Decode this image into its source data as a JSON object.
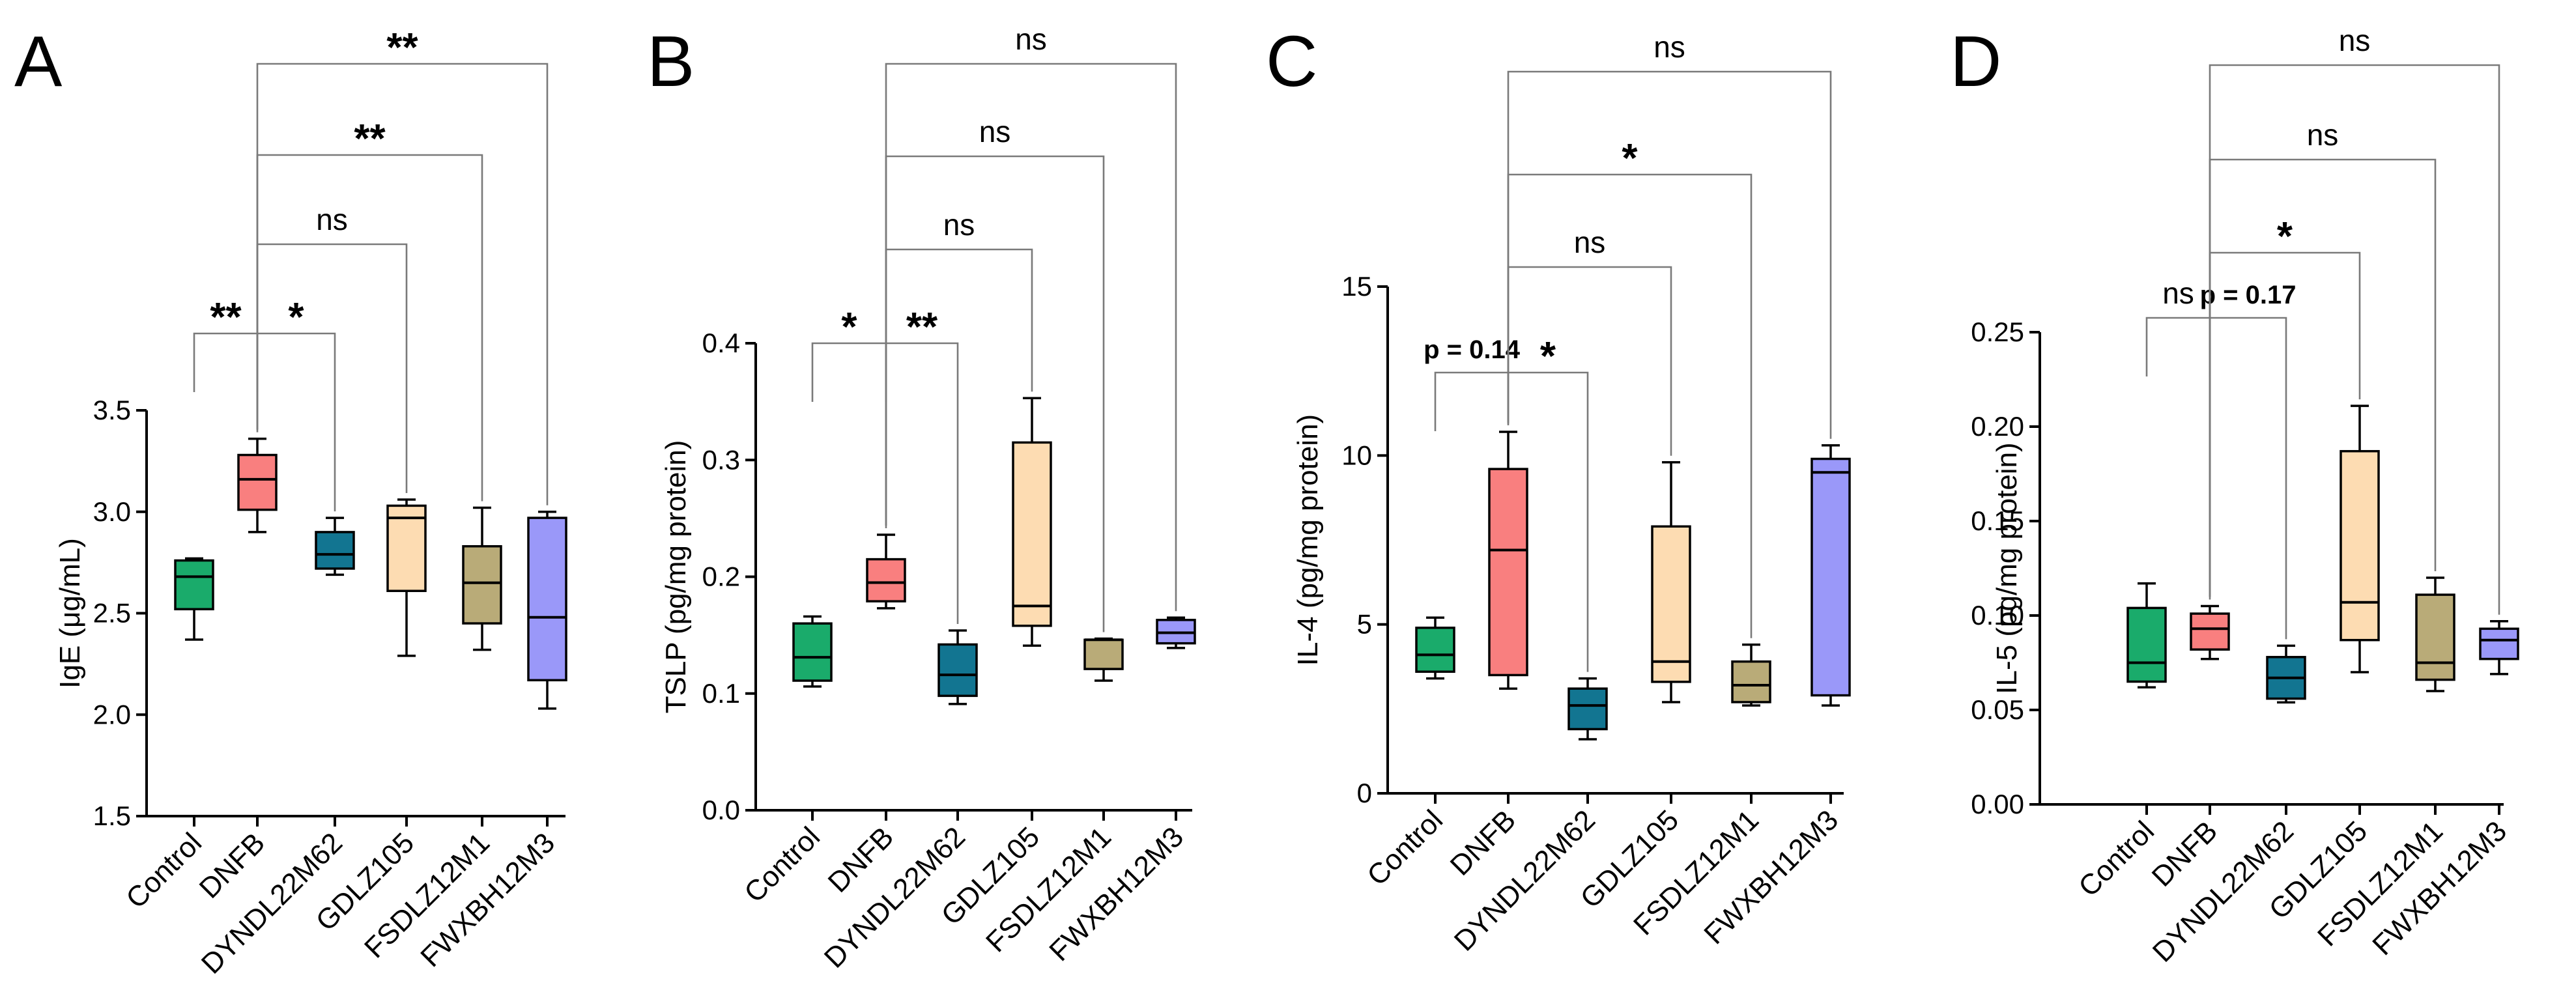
{
  "colors": [
    "#1aab6b",
    "#f97f7f",
    "#127591",
    "#fddcb2",
    "#b9ab78",
    "#9a98f9"
  ],
  "chart_data": [
    {
      "type": "box",
      "panel_label": "A",
      "ylabel": "IgE (μg/mL)",
      "ylim": [
        1.5,
        3.5
      ],
      "yticks": [
        "1.5",
        "2.0",
        "2.5",
        "3.0",
        "3.5"
      ],
      "ytick_values": [
        1.5,
        2.0,
        2.5,
        3.0,
        3.5
      ],
      "categories": [
        "Control",
        "DNFB",
        "DYNDL22M62",
        "GDLZ105",
        "FSDLZ12M1",
        "FWXBH12M3"
      ],
      "boxes": [
        {
          "min": 2.37,
          "q1": 2.52,
          "median": 2.68,
          "q3": 2.76,
          "max": 2.77
        },
        {
          "min": 2.9,
          "q1": 3.01,
          "median": 3.16,
          "q3": 3.28,
          "max": 3.36
        },
        {
          "min": 2.69,
          "q1": 2.72,
          "median": 2.79,
          "q3": 2.9,
          "max": 2.97
        },
        {
          "min": 2.29,
          "q1": 2.61,
          "median": 2.97,
          "q3": 3.03,
          "max": 3.06
        },
        {
          "min": 2.32,
          "q1": 2.45,
          "median": 2.65,
          "q3": 2.83,
          "max": 3.02
        },
        {
          "min": 2.03,
          "q1": 2.17,
          "median": 2.48,
          "q3": 2.97,
          "max": 3.0
        }
      ],
      "comparisons": [
        {
          "from": 0,
          "to": 1,
          "label": "**",
          "kind": "star",
          "level": 0
        },
        {
          "from": 1,
          "to": 2,
          "label": "*",
          "kind": "star",
          "level": 0
        },
        {
          "from": 1,
          "to": 3,
          "label": "ns",
          "kind": "ns",
          "level": 1
        },
        {
          "from": 1,
          "to": 4,
          "label": "**",
          "kind": "star",
          "level": 2
        },
        {
          "from": 1,
          "to": 5,
          "label": "**",
          "kind": "star",
          "level": 3
        }
      ]
    },
    {
      "type": "box",
      "panel_label": "B",
      "ylabel": "TSLP (pg/mg protein)",
      "ylim": [
        0.0,
        0.4
      ],
      "yticks": [
        "0.0",
        "0.1",
        "0.2",
        "0.3",
        "0.4"
      ],
      "ytick_values": [
        0.0,
        0.1,
        0.2,
        0.3,
        0.4
      ],
      "categories": [
        "Control",
        "DNFB",
        "DYNDL22M62",
        "GDLZ105",
        "FSDLZ12M1",
        "FWXBH12M3"
      ],
      "boxes": [
        {
          "min": 0.106,
          "q1": 0.111,
          "median": 0.131,
          "q3": 0.16,
          "max": 0.166
        },
        {
          "min": 0.173,
          "q1": 0.179,
          "median": 0.195,
          "q3": 0.215,
          "max": 0.236
        },
        {
          "min": 0.091,
          "q1": 0.098,
          "median": 0.116,
          "q3": 0.142,
          "max": 0.154
        },
        {
          "min": 0.141,
          "q1": 0.158,
          "median": 0.175,
          "q3": 0.315,
          "max": 0.353
        },
        {
          "min": 0.111,
          "q1": 0.121,
          "median": 0.146,
          "q3": 0.146,
          "max": 0.147
        },
        {
          "min": 0.139,
          "q1": 0.143,
          "median": 0.152,
          "q3": 0.163,
          "max": 0.165
        }
      ],
      "comparisons": [
        {
          "from": 0,
          "to": 1,
          "label": "*",
          "kind": "star",
          "level": 0
        },
        {
          "from": 1,
          "to": 2,
          "label": "**",
          "kind": "star",
          "level": 0
        },
        {
          "from": 1,
          "to": 3,
          "label": "ns",
          "kind": "ns",
          "level": 1
        },
        {
          "from": 1,
          "to": 4,
          "label": "ns",
          "kind": "ns",
          "level": 2
        },
        {
          "from": 1,
          "to": 5,
          "label": "ns",
          "kind": "ns",
          "level": 3
        }
      ]
    },
    {
      "type": "box",
      "panel_label": "C",
      "ylabel": "IL-4 (pg/mg protein)",
      "ylim": [
        0,
        15
      ],
      "yticks": [
        "0",
        "5",
        "10",
        "15"
      ],
      "ytick_values": [
        0,
        5,
        10,
        15
      ],
      "categories": [
        "Control",
        "DNFB",
        "DYNDL22M62",
        "GDLZ105",
        "FSDLZ12M1",
        "FWXBH12M3"
      ],
      "boxes": [
        {
          "min": 3.4,
          "q1": 3.6,
          "median": 4.1,
          "q3": 4.9,
          "max": 5.2
        },
        {
          "min": 3.1,
          "q1": 3.5,
          "median": 7.2,
          "q3": 9.6,
          "max": 10.7
        },
        {
          "min": 1.6,
          "q1": 1.9,
          "median": 2.6,
          "q3": 3.1,
          "max": 3.4
        },
        {
          "min": 2.7,
          "q1": 3.3,
          "median": 3.9,
          "q3": 7.9,
          "max": 9.8
        },
        {
          "min": 2.6,
          "q1": 2.7,
          "median": 3.2,
          "q3": 3.9,
          "max": 4.4
        },
        {
          "min": 2.6,
          "q1": 2.9,
          "median": 9.5,
          "q3": 9.9,
          "max": 10.3
        }
      ],
      "comparisons": [
        {
          "from": 0,
          "to": 1,
          "label": "p = 0.14",
          "kind": "p",
          "level": 0
        },
        {
          "from": 1,
          "to": 2,
          "label": "*",
          "kind": "star",
          "level": 0
        },
        {
          "from": 1,
          "to": 3,
          "label": "ns",
          "kind": "ns",
          "level": 1
        },
        {
          "from": 1,
          "to": 4,
          "label": "*",
          "kind": "star",
          "level": 2
        },
        {
          "from": 1,
          "to": 5,
          "label": "ns",
          "kind": "ns",
          "level": 3
        }
      ]
    },
    {
      "type": "box",
      "panel_label": "D",
      "ylabel": "IL-5 (pg/mg protein)",
      "ylim": [
        0.0,
        0.25
      ],
      "yticks": [
        "0.00",
        "0.05",
        "0.10",
        "0.15",
        "0.20",
        "0.25"
      ],
      "ytick_values": [
        0.0,
        0.05,
        0.1,
        0.15,
        0.2,
        0.25
      ],
      "categories": [
        "Control",
        "DNFB",
        "DYNDL22M62",
        "GDLZ105",
        "FSDLZ12M1",
        "FWXBH12M3"
      ],
      "boxes": [
        {
          "min": 0.062,
          "q1": 0.065,
          "median": 0.075,
          "q3": 0.104,
          "max": 0.117
        },
        {
          "min": 0.077,
          "q1": 0.082,
          "median": 0.093,
          "q3": 0.101,
          "max": 0.105
        },
        {
          "min": 0.054,
          "q1": 0.056,
          "median": 0.067,
          "q3": 0.078,
          "max": 0.084
        },
        {
          "min": 0.07,
          "q1": 0.087,
          "median": 0.107,
          "q3": 0.187,
          "max": 0.211
        },
        {
          "min": 0.06,
          "q1": 0.066,
          "median": 0.075,
          "q3": 0.111,
          "max": 0.12
        },
        {
          "min": 0.069,
          "q1": 0.077,
          "median": 0.087,
          "q3": 0.093,
          "max": 0.097
        }
      ],
      "comparisons": [
        {
          "from": 0,
          "to": 1,
          "label": "ns",
          "kind": "ns",
          "level": 0
        },
        {
          "from": 1,
          "to": 2,
          "label": "p = 0.17",
          "kind": "p",
          "level": 0
        },
        {
          "from": 1,
          "to": 3,
          "label": "*",
          "kind": "star",
          "level": 1
        },
        {
          "from": 1,
          "to": 4,
          "label": "ns",
          "kind": "ns",
          "level": 2
        },
        {
          "from": 1,
          "to": 5,
          "label": "ns",
          "kind": "ns",
          "level": 3
        }
      ]
    }
  ]
}
